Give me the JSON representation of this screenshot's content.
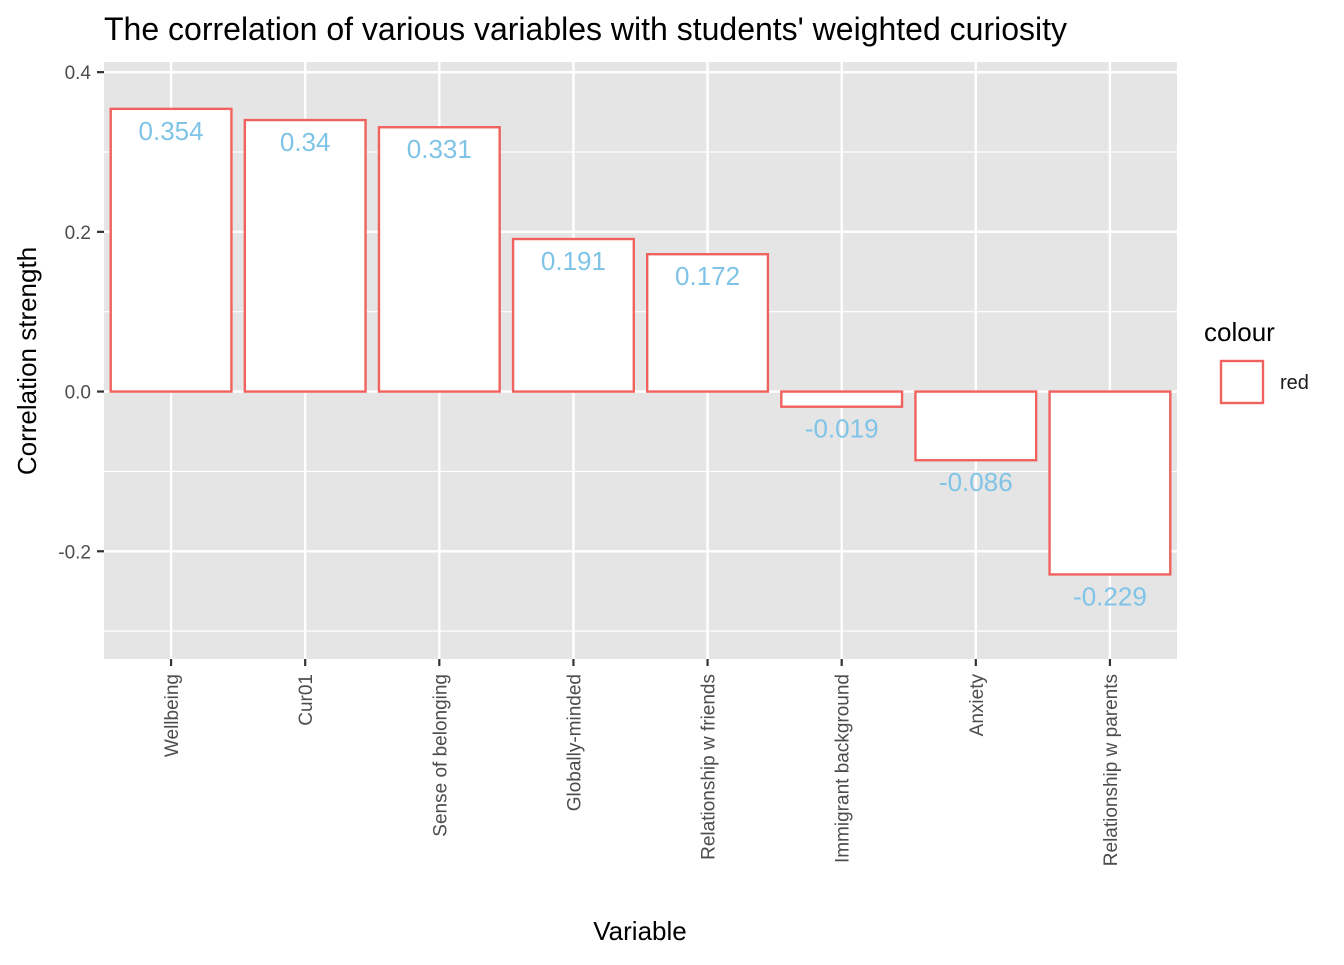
{
  "chart_data": {
    "type": "bar",
    "title": "The correlation of various variables with students' weighted curiosity",
    "xlabel": "Variable",
    "ylabel": "Correlation strength",
    "categories": [
      "Wellbeing",
      "Cur01",
      "Sense of belonging",
      "Globally-minded",
      "Relationship w friends",
      "Immigrant background",
      "Anxiety",
      "Relationship w parents"
    ],
    "values": [
      0.354,
      0.34,
      0.331,
      0.191,
      0.172,
      -0.019,
      -0.086,
      -0.229
    ],
    "data_labels": [
      "0.354",
      "0.34",
      "0.331",
      "0.191",
      "0.172",
      "-0.019",
      "-0.086",
      "-0.229"
    ],
    "ylim": [
      -0.3349,
      0.4127
    ],
    "y_ticks": [
      -0.2,
      0.0,
      0.2,
      0.4
    ],
    "y_tick_labels": [
      "-0.2",
      "0.0",
      "0.2",
      "0.4"
    ],
    "y_minor_ticks": [
      -0.3,
      -0.1,
      0.1,
      0.3
    ],
    "grid": true,
    "legend": {
      "title": "colour",
      "entries": [
        "red"
      ],
      "placement": "right"
    },
    "colors": {
      "panel_background": "#e5e5e5",
      "grid": "#ffffff",
      "bar_fill": "#ffffff",
      "bar_outline": "#f0625d",
      "data_label": "#7fc4e6",
      "axis_text": "#4d4d4d",
      "text": "#000000"
    }
  }
}
